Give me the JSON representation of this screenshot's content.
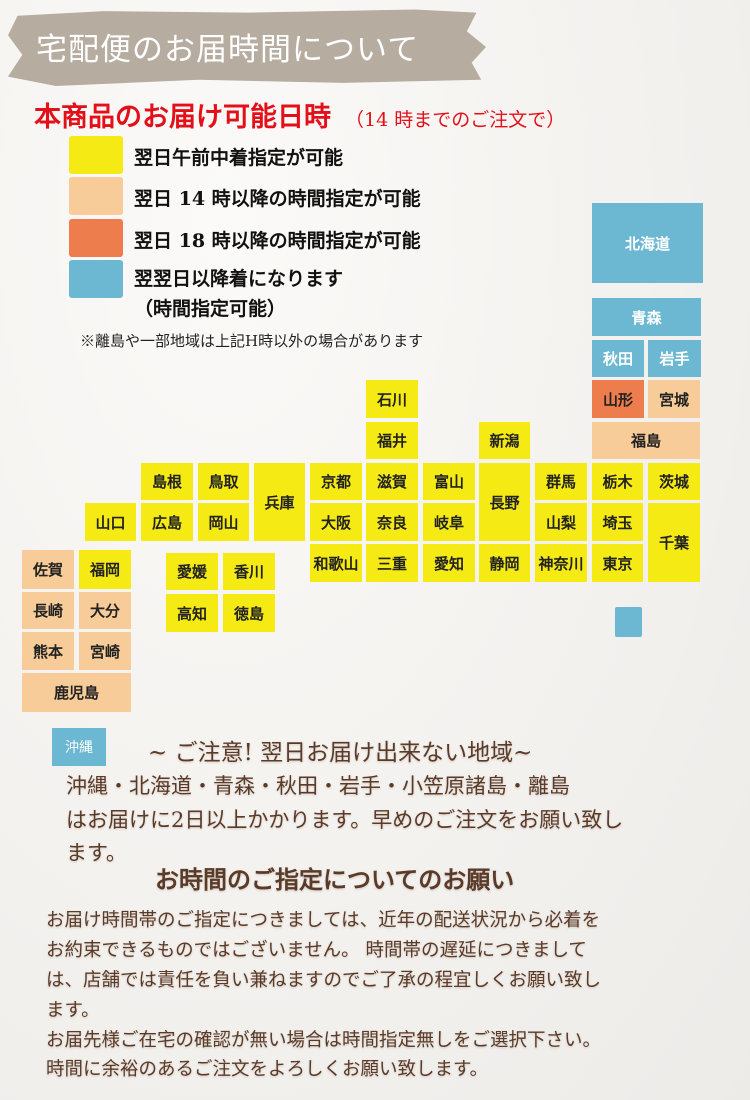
{
  "header": {
    "title": "宅配便のお届時間について"
  },
  "subtitle": {
    "main": "本商品のお届け可能日時",
    "note": "（14 時までのご注文で）"
  },
  "colors": {
    "yellow": "#f5ea14",
    "peach": "#f8cc98",
    "orange": "#ee7d4e",
    "blue": "#6cb8d2"
  },
  "legend": [
    {
      "zone": "yellow",
      "label": "翌日午前中着指定が可能"
    },
    {
      "zone": "peach",
      "label": "翌日 14 時以降の時間指定が可能"
    },
    {
      "zone": "orange",
      "label": "翌日 18 時以降の時間指定が可能"
    },
    {
      "zone": "blue",
      "label": "翌翌日以降着になります",
      "label2": "（時間指定可能）"
    }
  ],
  "footnote": "※離島や一部地域は上記H時以外の場合があります",
  "prefectures": [
    {
      "name": "北海道",
      "zone": "blue"
    },
    {
      "name": "青森",
      "zone": "blue"
    },
    {
      "name": "秋田",
      "zone": "blue"
    },
    {
      "name": "岩手",
      "zone": "blue"
    },
    {
      "name": "山形",
      "zone": "orange"
    },
    {
      "name": "宮城",
      "zone": "peach"
    },
    {
      "name": "福島",
      "zone": "peach"
    },
    {
      "name": "石川",
      "zone": "yellow"
    },
    {
      "name": "福井",
      "zone": "yellow"
    },
    {
      "name": "新潟",
      "zone": "yellow"
    },
    {
      "name": "島根",
      "zone": "yellow"
    },
    {
      "name": "鳥取",
      "zone": "yellow"
    },
    {
      "name": "兵庫",
      "zone": "yellow"
    },
    {
      "name": "京都",
      "zone": "yellow"
    },
    {
      "name": "滋賀",
      "zone": "yellow"
    },
    {
      "name": "富山",
      "zone": "yellow"
    },
    {
      "name": "長野",
      "zone": "yellow"
    },
    {
      "name": "群馬",
      "zone": "yellow"
    },
    {
      "name": "栃木",
      "zone": "yellow"
    },
    {
      "name": "茨城",
      "zone": "yellow"
    },
    {
      "name": "山口",
      "zone": "yellow"
    },
    {
      "name": "広島",
      "zone": "yellow"
    },
    {
      "name": "岡山",
      "zone": "yellow"
    },
    {
      "name": "大阪",
      "zone": "yellow"
    },
    {
      "name": "奈良",
      "zone": "yellow"
    },
    {
      "name": "岐阜",
      "zone": "yellow"
    },
    {
      "name": "山梨",
      "zone": "yellow"
    },
    {
      "name": "埼玉",
      "zone": "yellow"
    },
    {
      "name": "千葉",
      "zone": "yellow"
    },
    {
      "name": "和歌山",
      "zone": "yellow"
    },
    {
      "name": "三重",
      "zone": "yellow"
    },
    {
      "name": "愛知",
      "zone": "yellow"
    },
    {
      "name": "静岡",
      "zone": "yellow"
    },
    {
      "name": "神奈川",
      "zone": "yellow"
    },
    {
      "name": "東京",
      "zone": "yellow"
    },
    {
      "name": "佐賀",
      "zone": "peach"
    },
    {
      "name": "福岡",
      "zone": "yellow"
    },
    {
      "name": "愛媛",
      "zone": "yellow"
    },
    {
      "name": "香川",
      "zone": "yellow"
    },
    {
      "name": "長崎",
      "zone": "peach"
    },
    {
      "name": "大分",
      "zone": "peach"
    },
    {
      "name": "高知",
      "zone": "yellow"
    },
    {
      "name": "徳島",
      "zone": "yellow"
    },
    {
      "name": "熊本",
      "zone": "peach"
    },
    {
      "name": "宮崎",
      "zone": "peach"
    },
    {
      "name": "鹿児島",
      "zone": "peach"
    },
    {
      "name": "",
      "zone": "blue"
    }
  ],
  "okinawa": {
    "name": "沖縄",
    "zone": "blue"
  },
  "notice": {
    "heading": "~ ご注意! 翌日お届け出来ない地域~",
    "lines": [
      "沖縄・北海道・青森・秋田・岩手・小笠原諸島・離島",
      "はお届けに2日以上かかります。早めのご注文をお願い致し",
      "ます。"
    ]
  },
  "request": {
    "heading": "お時間のご指定についてのお願い",
    "lines": [
      "お届け時間帯のご指定につきましては、近年の配送状況から必着を",
      "お約束できるものではございません。 時間帯の遅延につきまして",
      "は、店舗では責任を負い兼ねますのでご了承の程宜しくお願い致し",
      "ます。",
      "お届先様ご在宅の確認が無い場合は時間指定無しをご選択下さい。",
      "時間に余裕のあるご注文をよろしくお願い致します。"
    ]
  }
}
